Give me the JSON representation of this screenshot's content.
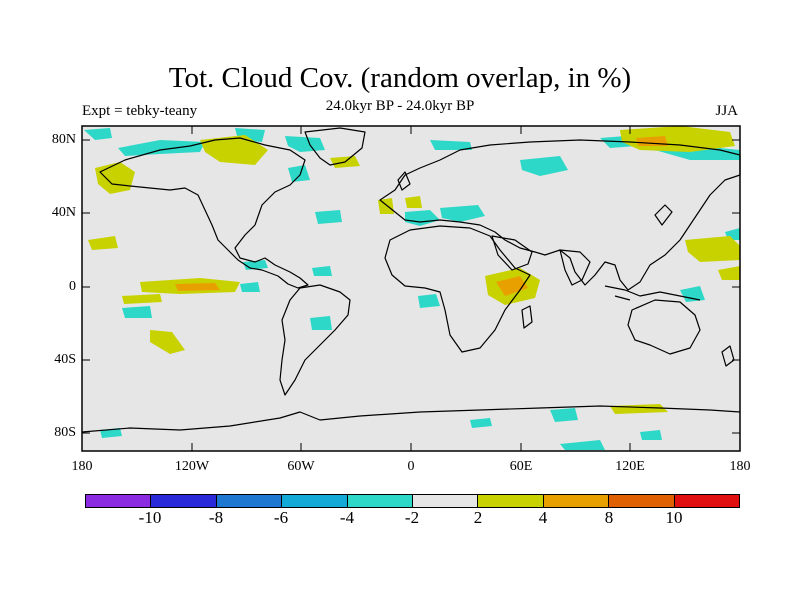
{
  "title": "Tot. Cloud Cov. (random overlap, in %)",
  "subtitle": "24.0kyr BP - 24.0kyr BP",
  "experiment": "Expt = tebky-teany",
  "season": "JJA",
  "lat_labels": [
    "80N",
    "40N",
    "0",
    "40S",
    "80S"
  ],
  "lon_labels": [
    "180",
    "120W",
    "60W",
    "0",
    "60E",
    "120E",
    "180"
  ],
  "colorbar": {
    "colors": [
      "#8a2be2",
      "#2a2ad8",
      "#1e78d2",
      "#14aad8",
      "#2ed8c8",
      "#e6e6e6",
      "#c8d200",
      "#e8a000",
      "#e06000",
      "#e01010"
    ],
    "labels": [
      "-10",
      "-8",
      "-6",
      "-4",
      "-2",
      "2",
      "4",
      "8",
      "10"
    ]
  },
  "legend_colors": {
    "neutral": "#e6e6e6",
    "cyan": "#2ed8c8",
    "blue": "#14aad8",
    "yellow": "#c8d200",
    "orange": "#e8a000",
    "darkorange": "#e06000"
  }
}
